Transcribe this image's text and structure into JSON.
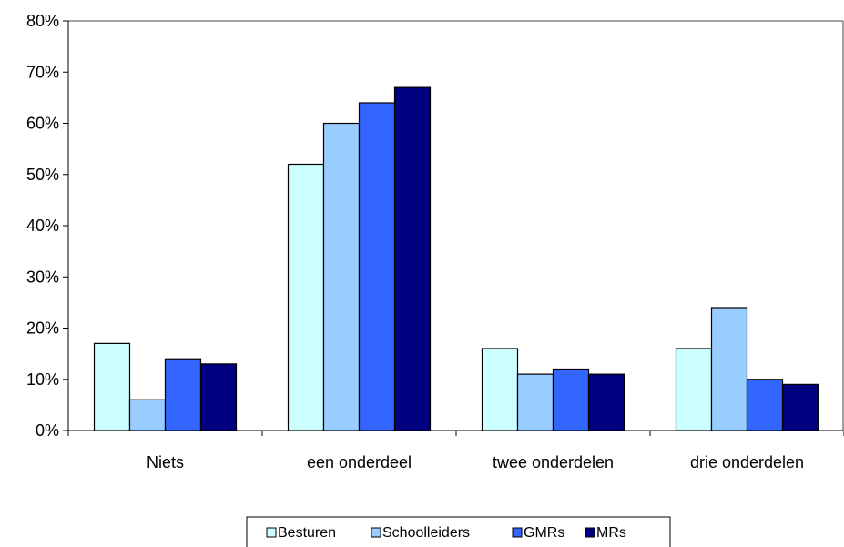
{
  "chart_data": {
    "type": "bar",
    "categories": [
      "Niets",
      "een onderdeel",
      "twee onderdelen",
      "drie onderdelen"
    ],
    "series": [
      {
        "name": "Besturen",
        "values": [
          17,
          52,
          16,
          16
        ],
        "color": "#CCFFFF"
      },
      {
        "name": "Schoolleiders",
        "values": [
          6,
          60,
          11,
          24
        ],
        "color": "#99CCFF"
      },
      {
        "name": "GMRs",
        "values": [
          14,
          64,
          12,
          10
        ],
        "color": "#3366FF"
      },
      {
        "name": "MRs",
        "values": [
          13,
          67,
          11,
          9
        ],
        "color": "#000080"
      }
    ],
    "yticks": [
      "0%",
      "10%",
      "20%",
      "30%",
      "40%",
      "50%",
      "60%",
      "70%",
      "80%"
    ],
    "ylim": [
      0,
      80
    ],
    "title": "",
    "xlabel": "",
    "ylabel": "",
    "grid": false,
    "legend_position": "bottom"
  }
}
